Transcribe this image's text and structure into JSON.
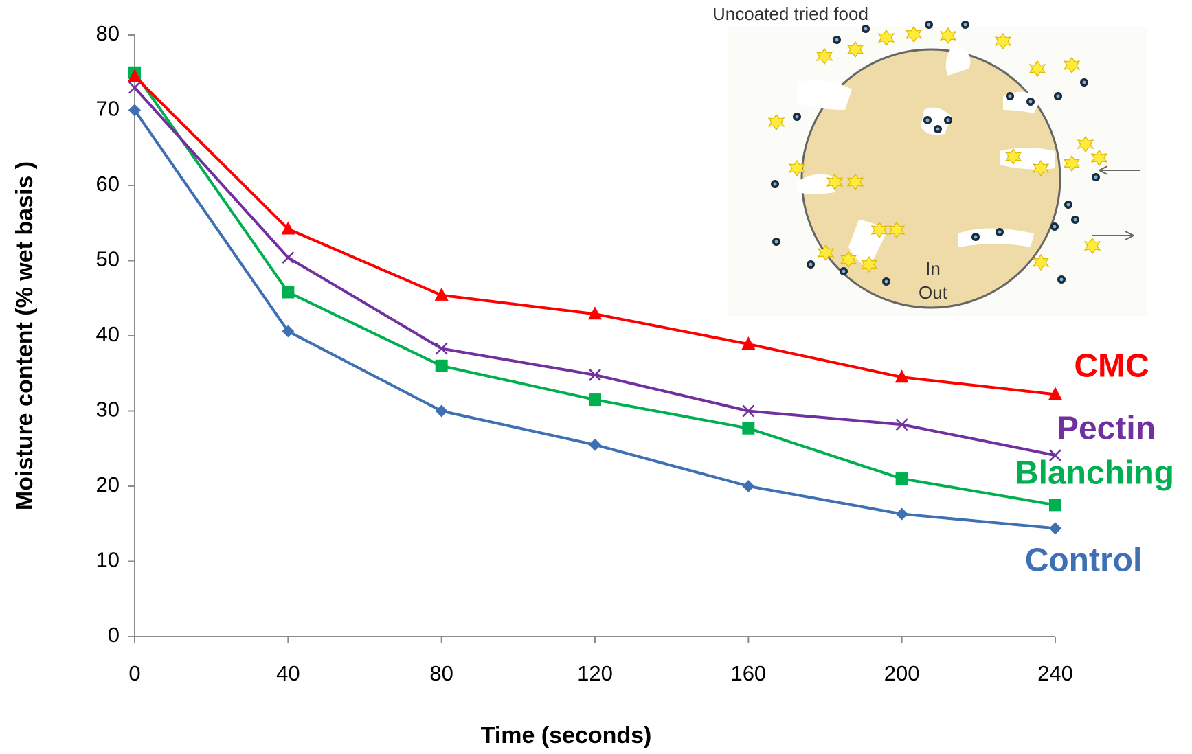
{
  "chart_data": {
    "type": "line",
    "x_label": "Time (seconds)",
    "y_label": "Moisture content (% wet basis )",
    "x": [
      0,
      40,
      80,
      120,
      160,
      200,
      240
    ],
    "xlim": [
      0,
      240
    ],
    "xticks": [
      0,
      40,
      80,
      120,
      160,
      200,
      240
    ],
    "ylim": [
      0,
      80
    ],
    "yticks": [
      0,
      10,
      20,
      30,
      40,
      50,
      60,
      70,
      80
    ],
    "series": [
      {
        "name": "Control",
        "color": "#3f70b3",
        "marker": "diamond",
        "values": [
          70,
          40.6,
          30,
          25.5,
          20,
          16.3,
          14.4
        ]
      },
      {
        "name": "Blanching",
        "color": "#00b050",
        "marker": "square",
        "values": [
          75,
          45.8,
          36,
          31.5,
          27.7,
          21,
          17.5
        ]
      },
      {
        "name": "Pectin",
        "color": "#7030a0",
        "marker": "x",
        "values": [
          73,
          50.4,
          38.3,
          34.8,
          30,
          28.2,
          24.1
        ]
      },
      {
        "name": "CMC",
        "color": "#ff0000",
        "marker": "triangle",
        "values": [
          74.5,
          54.2,
          45.4,
          42.9,
          38.9,
          34.5,
          32.2
        ]
      }
    ],
    "annotations": [
      "Uncoated tried food",
      "In",
      "Out"
    ]
  }
}
